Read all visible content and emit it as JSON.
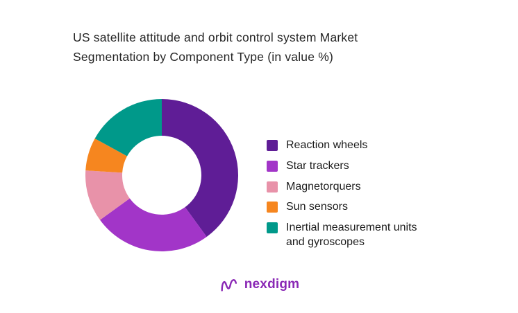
{
  "page": {
    "background": "#ffffff"
  },
  "chart_data": {
    "type": "pie",
    "donut": true,
    "title": "US satellite attitude and orbit control system Market Segmentation by Component Type (in value %)",
    "categories": [
      "Reaction wheels",
      "Star trackers",
      "Magnetorquers",
      "Sun sensors",
      "Inertial measurement units and gyroscopes"
    ],
    "values": [
      40,
      25,
      11,
      7,
      17
    ],
    "colors": [
      "#5f1d96",
      "#a235c8",
      "#e892a9",
      "#f6861f",
      "#00998a"
    ],
    "legend_position": "right",
    "start_angle_deg": 0,
    "inner_radius_ratio": 0.52,
    "grid": false,
    "data_labels": false
  },
  "logo": {
    "text": "nexdigm",
    "color": "#8a28b5"
  }
}
